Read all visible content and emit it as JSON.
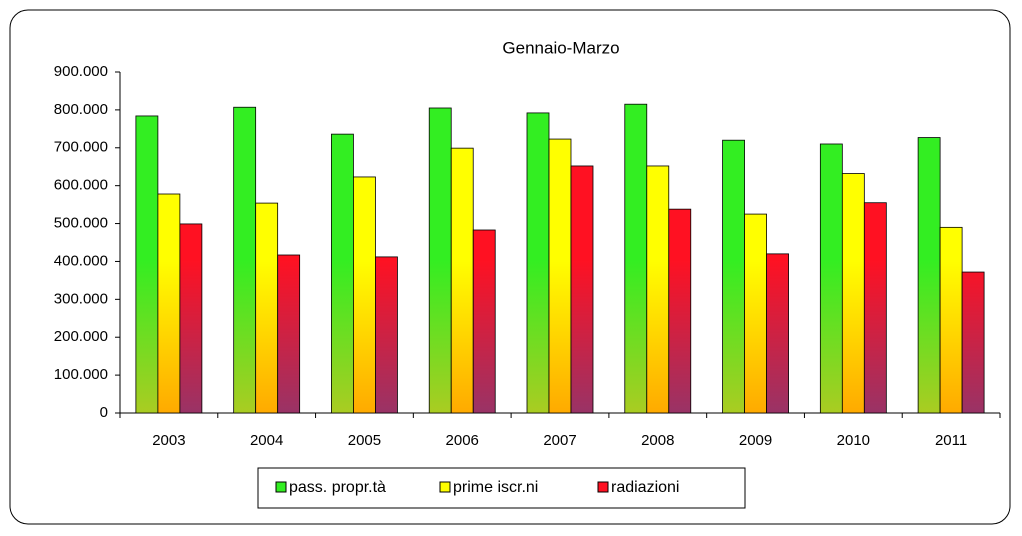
{
  "chart_data": {
    "type": "bar",
    "title": "Gennaio-Marzo",
    "categories": [
      "2003",
      "2004",
      "2005",
      "2006",
      "2007",
      "2008",
      "2009",
      "2010",
      "2011"
    ],
    "series": [
      {
        "name": "pass. propr.tà",
        "color": "#33ee22",
        "values": [
          784000,
          807000,
          736000,
          805000,
          792000,
          815000,
          720000,
          710000,
          727000
        ]
      },
      {
        "name": "prime iscr.ni",
        "color": "#ffff00",
        "values": [
          578000,
          554000,
          623000,
          699000,
          723000,
          652000,
          525000,
          632000,
          490000
        ]
      },
      {
        "name": "radiazioni",
        "color": "#ff1122",
        "values": [
          499000,
          417000,
          412000,
          483000,
          652000,
          538000,
          420000,
          555000,
          372000
        ]
      }
    ],
    "ylim": [
      0,
      900000
    ],
    "yticks": [
      0,
      {
        "value": 100000,
        "label": "100.000"
      },
      {
        "value": 200000,
        "label": "200.000"
      },
      {
        "value": 300000,
        "label": "300.000"
      },
      {
        "value": 400000,
        "label": "400.000"
      },
      {
        "value": 500000,
        "label": "500.000"
      },
      {
        "value": 600000,
        "label": "600.000"
      },
      {
        "value": 700000,
        "label": "700.000"
      },
      {
        "value": 800000,
        "label": "800.000"
      },
      {
        "value": 900000,
        "label": "900.000"
      }
    ],
    "grid": false,
    "legend": "bottom"
  }
}
